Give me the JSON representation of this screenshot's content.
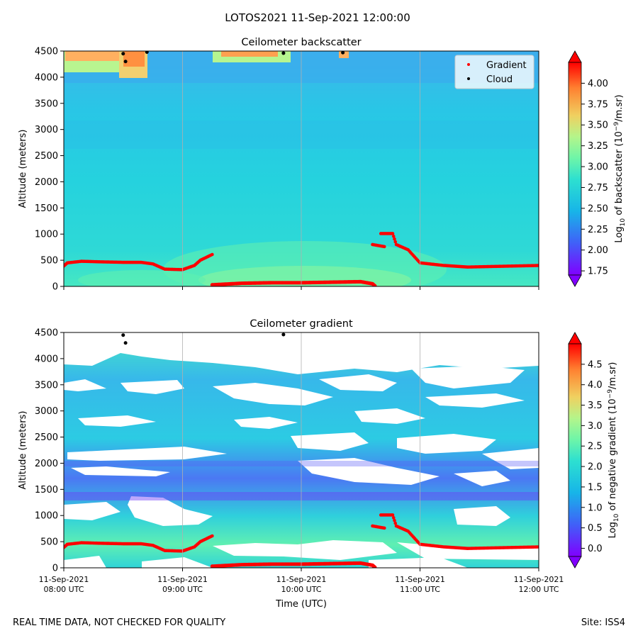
{
  "suptitle": "LOTOS2021 11-Sep-2021 12:00:00",
  "footer_left": "REAL TIME DATA, NOT CHECKED FOR QUALITY",
  "footer_right": "Site: ISS4",
  "chart_data": [
    {
      "type": "heatmap",
      "title": "Ceilometer backscatter",
      "ylabel": "Altitude (meters)",
      "xlabel": "",
      "ylim": [
        0,
        4500
      ],
      "xlim_hours": [
        8,
        12
      ],
      "yticks": [
        0,
        500,
        1000,
        1500,
        2000,
        2500,
        3000,
        3500,
        4000,
        4500
      ],
      "grid_x_hours": [
        9,
        10,
        11
      ],
      "legend": {
        "placement": "top-right",
        "entries": [
          {
            "label": "Gradient",
            "color": "#ff0000"
          },
          {
            "label": "Cloud",
            "color": "#000000"
          }
        ]
      },
      "colorbar": {
        "label": "Log10 of backscatter (10^-9/m.sr)",
        "label_main": "Log",
        "label_sub": "10",
        "label_mid": " of backscatter (10",
        "label_sup": "−9",
        "label_end": "/m.sr)",
        "vmin": 1.7,
        "vmax": 4.25,
        "ticks": [
          "1.75",
          "2.00",
          "2.25",
          "2.50",
          "2.75",
          "3.00",
          "3.25",
          "3.50",
          "3.75",
          "4.00"
        ]
      },
      "gradient_points": [
        [
          8.0,
          390
        ],
        [
          8.03,
          450
        ],
        [
          8.15,
          480
        ],
        [
          8.3,
          470
        ],
        [
          8.5,
          460
        ],
        [
          8.65,
          460
        ],
        [
          8.75,
          430
        ],
        [
          8.85,
          330
        ],
        [
          9.0,
          320
        ],
        [
          9.1,
          400
        ],
        [
          9.15,
          500
        ],
        [
          9.25,
          610
        ]
      ],
      "gradient_points_2": [
        [
          10.6,
          800
        ],
        [
          10.7,
          760
        ]
      ],
      "gradient_points_3": [
        [
          10.67,
          1010
        ],
        [
          10.77,
          1010
        ],
        [
          10.8,
          800
        ],
        [
          10.9,
          700
        ],
        [
          11.0,
          450
        ],
        [
          11.2,
          400
        ],
        [
          11.4,
          370
        ],
        [
          11.6,
          380
        ],
        [
          12.0,
          400
        ]
      ],
      "gradient_surface": [
        [
          9.25,
          30
        ],
        [
          9.5,
          60
        ],
        [
          9.75,
          70
        ],
        [
          10.0,
          70
        ],
        [
          10.25,
          80
        ],
        [
          10.5,
          90
        ],
        [
          10.6,
          50
        ],
        [
          10.62,
          10
        ]
      ],
      "cloud_points": [
        [
          8.5,
          4450
        ],
        [
          8.52,
          4300
        ],
        [
          8.7,
          4480
        ],
        [
          9.85,
          4460
        ],
        [
          10.35,
          4470
        ]
      ],
      "series_labels": [
        "Gradient",
        "Cloud"
      ]
    },
    {
      "type": "heatmap",
      "title": "Ceilometer gradient",
      "ylabel": "Altitude (meters)",
      "xlabel": "Time (UTC)",
      "ylim": [
        0,
        4500
      ],
      "xlim_hours": [
        8,
        12
      ],
      "yticks": [
        0,
        500,
        1000,
        1500,
        2000,
        2500,
        3000,
        3500,
        4000,
        4500
      ],
      "grid_x_hours": [
        9,
        10,
        11
      ],
      "xticks": [
        {
          "hour": 8,
          "line1": "11-Sep-2021",
          "line2": "08:00 UTC"
        },
        {
          "hour": 9,
          "line1": "11-Sep-2021",
          "line2": "09:00 UTC"
        },
        {
          "hour": 10,
          "line1": "11-Sep-2021",
          "line2": "10:00 UTC"
        },
        {
          "hour": 11,
          "line1": "11-Sep-2021",
          "line2": "11:00 UTC"
        },
        {
          "hour": 12,
          "line1": "11-Sep-2021",
          "line2": "12:00 UTC"
        }
      ],
      "colorbar": {
        "label": "Log10 of negative gradient (10^-9/m.sr)",
        "label_main": "Log",
        "label_sub": "10",
        "label_mid": " of negative gradient (10",
        "label_sup": "−9",
        "label_end": "/m.sr)",
        "vmin": -0.2,
        "vmax": 5.0,
        "ticks": [
          "0.0",
          "0.5",
          "1.0",
          "1.5",
          "2.0",
          "2.5",
          "3.0",
          "3.5",
          "4.0",
          "4.5"
        ]
      },
      "gradient_points": [
        [
          8.0,
          390
        ],
        [
          8.03,
          450
        ],
        [
          8.15,
          480
        ],
        [
          8.3,
          470
        ],
        [
          8.5,
          460
        ],
        [
          8.65,
          460
        ],
        [
          8.75,
          430
        ],
        [
          8.85,
          330
        ],
        [
          9.0,
          320
        ],
        [
          9.1,
          400
        ],
        [
          9.15,
          500
        ],
        [
          9.25,
          610
        ]
      ],
      "gradient_points_2": [
        [
          10.6,
          800
        ],
        [
          10.7,
          760
        ]
      ],
      "gradient_points_3": [
        [
          10.67,
          1010
        ],
        [
          10.77,
          1010
        ],
        [
          10.8,
          800
        ],
        [
          10.9,
          700
        ],
        [
          11.0,
          450
        ],
        [
          11.2,
          400
        ],
        [
          11.4,
          370
        ],
        [
          11.6,
          380
        ],
        [
          12.0,
          400
        ]
      ],
      "gradient_surface": [
        [
          9.25,
          30
        ],
        [
          9.5,
          60
        ],
        [
          9.75,
          70
        ],
        [
          10.0,
          70
        ],
        [
          10.25,
          80
        ],
        [
          10.5,
          90
        ],
        [
          10.6,
          50
        ],
        [
          10.62,
          10
        ]
      ],
      "cloud_points": [
        [
          8.5,
          4450
        ],
        [
          8.52,
          4300
        ],
        [
          9.85,
          4460
        ]
      ]
    }
  ]
}
